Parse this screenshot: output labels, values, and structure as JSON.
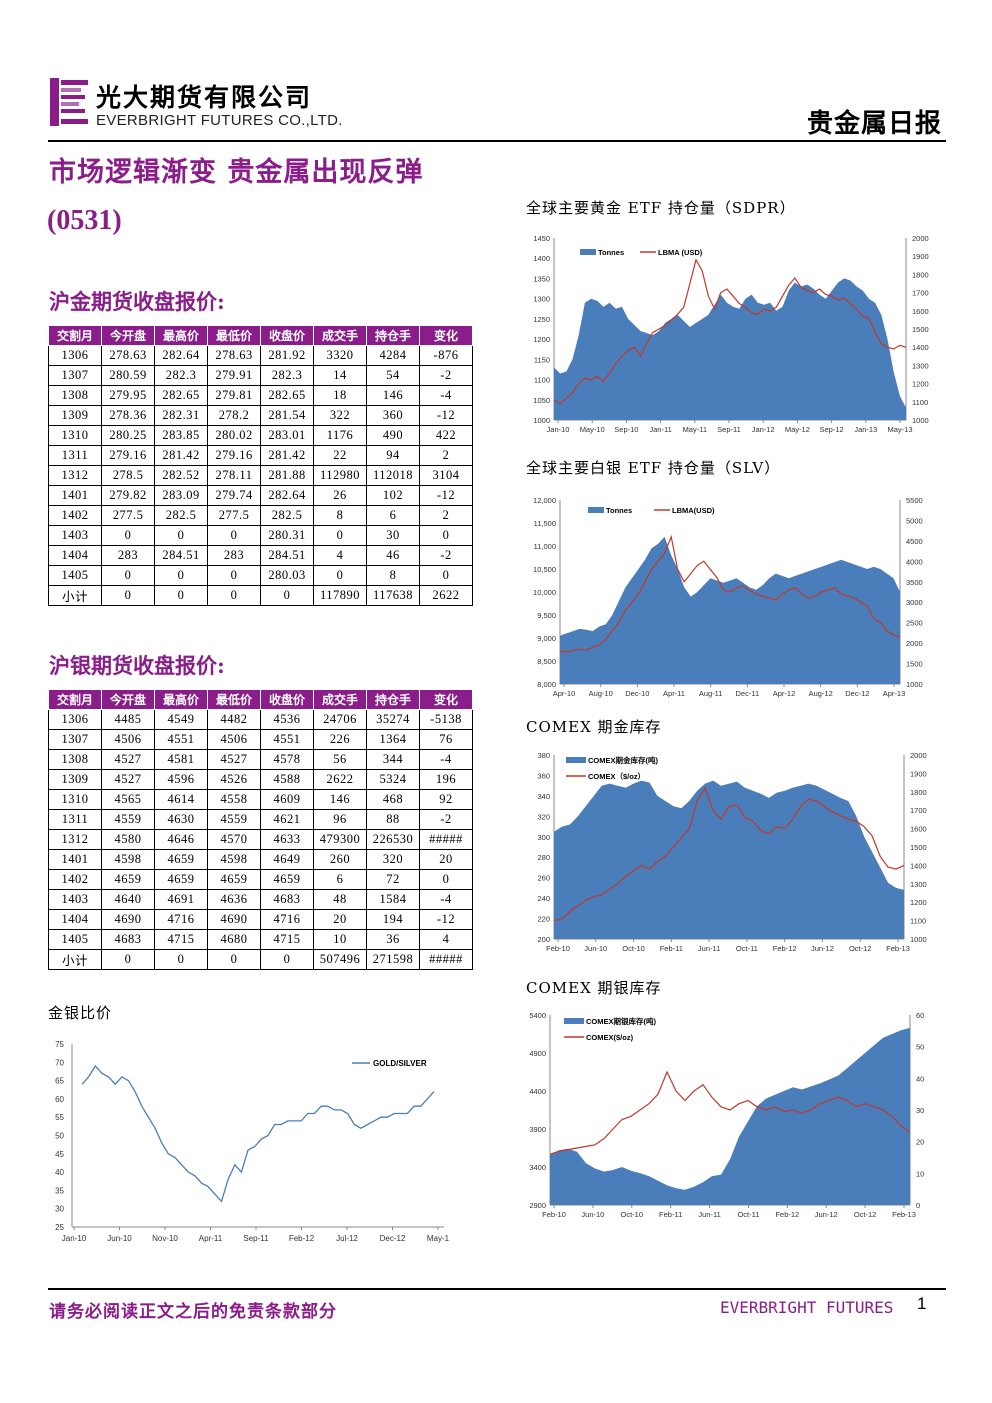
{
  "header": {
    "company_cn": "光大期货有限公司",
    "company_en": "EVERBRIGHT FUTURES CO.,LTD.",
    "report_type": "贵金属日报"
  },
  "main_title": "市场逻辑渐变 贵金属出现反弹",
  "issue_code": "(0531)",
  "gold_section": {
    "title": "沪金期货收盘报价:",
    "columns": [
      "交割月",
      "今开盘",
      "最高价",
      "最低价",
      "收盘价",
      "成交手",
      "持仓手",
      "变化"
    ],
    "rows": [
      [
        "1306",
        "278.63",
        "282.64",
        "278.63",
        "281.92",
        "3320",
        "4284",
        "-876"
      ],
      [
        "1307",
        "280.59",
        "282.3",
        "279.91",
        "282.3",
        "14",
        "54",
        "-2"
      ],
      [
        "1308",
        "279.95",
        "282.65",
        "279.81",
        "282.65",
        "18",
        "146",
        "-4"
      ],
      [
        "1309",
        "278.36",
        "282.31",
        "278.2",
        "281.54",
        "322",
        "360",
        "-12"
      ],
      [
        "1310",
        "280.25",
        "283.85",
        "280.02",
        "283.01",
        "1176",
        "490",
        "422"
      ],
      [
        "1311",
        "279.16",
        "281.42",
        "279.16",
        "281.42",
        "22",
        "94",
        "2"
      ],
      [
        "1312",
        "278.5",
        "282.52",
        "278.11",
        "281.88",
        "112980",
        "112018",
        "3104"
      ],
      [
        "1401",
        "279.82",
        "283.09",
        "279.74",
        "282.64",
        "26",
        "102",
        "-12"
      ],
      [
        "1402",
        "277.5",
        "282.5",
        "277.5",
        "282.5",
        "8",
        "6",
        "2"
      ],
      [
        "1403",
        "0",
        "0",
        "0",
        "280.31",
        "0",
        "30",
        "0"
      ],
      [
        "1404",
        "283",
        "284.51",
        "283",
        "284.51",
        "4",
        "46",
        "-2"
      ],
      [
        "1405",
        "0",
        "0",
        "0",
        "280.03",
        "0",
        "8",
        "0"
      ],
      [
        "小计",
        "0",
        "0",
        "0",
        "0",
        "117890",
        "117638",
        "2622"
      ]
    ]
  },
  "silver_section": {
    "title": "沪银期货收盘报价:",
    "columns": [
      "交割月",
      "今开盘",
      "最高价",
      "最低价",
      "收盘价",
      "成交手",
      "持仓手",
      "变化"
    ],
    "rows": [
      [
        "1306",
        "4485",
        "4549",
        "4482",
        "4536",
        "24706",
        "35274",
        "-5138"
      ],
      [
        "1307",
        "4506",
        "4551",
        "4506",
        "4551",
        "226",
        "1364",
        "76"
      ],
      [
        "1308",
        "4527",
        "4581",
        "4527",
        "4578",
        "56",
        "344",
        "-4"
      ],
      [
        "1309",
        "4527",
        "4596",
        "4526",
        "4588",
        "2622",
        "5324",
        "196"
      ],
      [
        "1310",
        "4565",
        "4614",
        "4558",
        "4609",
        "146",
        "468",
        "92"
      ],
      [
        "1311",
        "4559",
        "4630",
        "4559",
        "4621",
        "96",
        "88",
        "-2"
      ],
      [
        "1312",
        "4580",
        "4646",
        "4570",
        "4633",
        "479300",
        "226530",
        "#####"
      ],
      [
        "1401",
        "4598",
        "4659",
        "4598",
        "4649",
        "260",
        "320",
        "20"
      ],
      [
        "1402",
        "4659",
        "4659",
        "4659",
        "4659",
        "6",
        "72",
        "0"
      ],
      [
        "1403",
        "4640",
        "4691",
        "4636",
        "4683",
        "48",
        "1584",
        "-4"
      ],
      [
        "1404",
        "4690",
        "4716",
        "4690",
        "4716",
        "20",
        "194",
        "-12"
      ],
      [
        "1405",
        "4683",
        "4715",
        "4680",
        "4715",
        "10",
        "36",
        "4"
      ],
      [
        "小计",
        "0",
        "0",
        "0",
        "0",
        "507496",
        "271598",
        "#####"
      ]
    ]
  },
  "footer": {
    "disclaimer": "请务必阅读正文之后的免责条款部分",
    "brand": "EVERBRIGHT FUTURES",
    "page": "1"
  },
  "colors": {
    "accent": "#8b1d8b",
    "area_blue": "#4a7ebb",
    "line_red": "#c0392b",
    "line_blue": "#4a7ebb"
  },
  "chart_data": [
    {
      "id": "gold-etf",
      "type": "area",
      "title": "全球主要黄金 ETF 持仓量（SDPR）",
      "x_ticks": [
        "Jan-10",
        "May-10",
        "Sep-10",
        "Jan-11",
        "May-11",
        "Sep-11",
        "Jan-12",
        "May-12",
        "Sep-12",
        "Jan-13",
        "May-13"
      ],
      "y_left_ticks": [
        "1450",
        "1400",
        "1350",
        "1300",
        "1250",
        "1200",
        "1150",
        "1100",
        "1050",
        "1000"
      ],
      "y_right_ticks": [
        "2000",
        "1900",
        "1800",
        "1700",
        "1600",
        "1500",
        "1400",
        "1300",
        "1200",
        "1100",
        "1000"
      ],
      "ylim_left": [
        1000,
        1450
      ],
      "ylim_right": [
        1000,
        2000
      ],
      "series": [
        {
          "name": "Tonnes",
          "type": "area",
          "axis": "left",
          "values": [
            1130,
            1115,
            1120,
            1150,
            1210,
            1290,
            1300,
            1295,
            1280,
            1290,
            1275,
            1280,
            1250,
            1235,
            1220,
            1215,
            1210,
            1220,
            1240,
            1250,
            1260,
            1245,
            1230,
            1240,
            1250,
            1260,
            1285,
            1310,
            1290,
            1280,
            1275,
            1300,
            1310,
            1290,
            1285,
            1290,
            1270,
            1280,
            1320,
            1340,
            1330,
            1335,
            1325,
            1310,
            1300,
            1320,
            1340,
            1350,
            1345,
            1330,
            1320,
            1300,
            1290,
            1260,
            1200,
            1120,
            1060,
            1030
          ]
        },
        {
          "name": "LBMA (USD)",
          "type": "line",
          "axis": "right",
          "values": [
            1110,
            1090,
            1120,
            1150,
            1200,
            1230,
            1220,
            1240,
            1210,
            1260,
            1310,
            1350,
            1380,
            1400,
            1350,
            1420,
            1480,
            1500,
            1520,
            1550,
            1580,
            1620,
            1750,
            1880,
            1820,
            1680,
            1610,
            1700,
            1720,
            1680,
            1640,
            1620,
            1590,
            1580,
            1610,
            1600,
            1620,
            1680,
            1740,
            1780,
            1730,
            1710,
            1700,
            1720,
            1690,
            1680,
            1660,
            1670,
            1640,
            1610,
            1570,
            1560,
            1480,
            1420,
            1400,
            1390,
            1410,
            1400
          ]
        }
      ]
    },
    {
      "id": "silver-etf",
      "type": "area",
      "title": "全球主要白银 ETF 持仓量（SLV）",
      "x_ticks": [
        "Apr-10",
        "Aug-10",
        "Dec-10",
        "Apr-11",
        "Aug-11",
        "Dec-11",
        "Apr-12",
        "Aug-12",
        "Dec-12",
        "Apr-13"
      ],
      "y_left_ticks": [
        "12,000",
        "11,500",
        "11,000",
        "10,500",
        "10,000",
        "9,500",
        "9,000",
        "8,500",
        "8,000"
      ],
      "y_right_ticks": [
        "5500",
        "5000",
        "4500",
        "4000",
        "3500",
        "3000",
        "2500",
        "2000",
        "1500",
        "1000"
      ],
      "ylim_left": [
        8000,
        12000
      ],
      "ylim_right": [
        1000,
        5500
      ],
      "series": [
        {
          "name": "Tonnes",
          "type": "area",
          "axis": "left",
          "values": [
            9050,
            9100,
            9150,
            9200,
            9180,
            9150,
            9250,
            9300,
            9500,
            9800,
            10100,
            10300,
            10500,
            10700,
            10950,
            11050,
            11200,
            10800,
            10500,
            10100,
            9900,
            10000,
            10150,
            10300,
            10250,
            10200,
            10250,
            10300,
            10200,
            10100,
            10050,
            10150,
            10300,
            10400,
            10350,
            10300,
            10350,
            10400,
            10450,
            10500,
            10550,
            10600,
            10650,
            10700,
            10650,
            10600,
            10550,
            10500,
            10550,
            10500,
            10400,
            10300,
            10000
          ]
        },
        {
          "name": "LBMA(USD)",
          "type": "line",
          "axis": "right",
          "values": [
            1800,
            1780,
            1820,
            1850,
            1830,
            1900,
            1950,
            2100,
            2300,
            2500,
            2800,
            3000,
            3200,
            3500,
            3800,
            4000,
            4200,
            4600,
            3800,
            3500,
            3700,
            3900,
            4000,
            3800,
            3600,
            3300,
            3250,
            3350,
            3400,
            3300,
            3200,
            3150,
            3100,
            3050,
            3200,
            3300,
            3350,
            3200,
            3100,
            3150,
            3250,
            3300,
            3350,
            3200,
            3150,
            3100,
            3000,
            2900,
            2600,
            2500,
            2300,
            2200,
            2150
          ]
        }
      ]
    },
    {
      "id": "comex-gold",
      "type": "area",
      "title": "COMEX 期金库存",
      "x_ticks": [
        "Feb-10",
        "Jun-10",
        "Oct-10",
        "Feb-11",
        "Jun-11",
        "Oct-11",
        "Feb-12",
        "Jun-12",
        "Oct-12",
        "Feb-13"
      ],
      "y_left_ticks": [
        "380",
        "360",
        "340",
        "320",
        "300",
        "280",
        "260",
        "240",
        "220",
        "200"
      ],
      "y_right_ticks": [
        "2000",
        "1900",
        "1800",
        "1700",
        "1600",
        "1500",
        "1400",
        "1300",
        "1200",
        "1100",
        "1000"
      ],
      "ylim_left": [
        200,
        380
      ],
      "ylim_right": [
        1000,
        2000
      ],
      "series": [
        {
          "name": "COMEX期金库存(吨)",
          "type": "area",
          "axis": "left",
          "values": [
            305,
            310,
            312,
            320,
            330,
            340,
            350,
            352,
            350,
            348,
            352,
            355,
            353,
            340,
            335,
            330,
            328,
            335,
            345,
            352,
            355,
            350,
            352,
            354,
            348,
            345,
            342,
            338,
            343,
            345,
            348,
            350,
            352,
            350,
            346,
            342,
            338,
            335,
            320,
            300,
            285,
            270,
            255,
            250,
            248
          ]
        },
        {
          "name": "COMEX（$/oz）",
          "type": "line",
          "axis": "right",
          "values": [
            1100,
            1110,
            1150,
            1180,
            1210,
            1230,
            1240,
            1270,
            1300,
            1340,
            1370,
            1400,
            1380,
            1420,
            1450,
            1500,
            1550,
            1600,
            1750,
            1820,
            1700,
            1650,
            1720,
            1730,
            1660,
            1640,
            1590,
            1570,
            1610,
            1600,
            1650,
            1720,
            1760,
            1750,
            1720,
            1690,
            1670,
            1650,
            1640,
            1610,
            1560,
            1450,
            1390,
            1380,
            1400
          ]
        }
      ]
    },
    {
      "id": "comex-silver",
      "type": "area",
      "title": "COMEX 期银库存",
      "x_ticks": [
        "Feb-10",
        "Jun-10",
        "Oct-10",
        "Feb-11",
        "Jun-11",
        "Oct-11",
        "Feb-12",
        "Jun-12",
        "Oct-12",
        "Feb-13"
      ],
      "y_left_ticks": [
        "5400",
        "4900",
        "4400",
        "3900",
        "3400",
        "2900"
      ],
      "y_right_ticks": [
        "60",
        "50",
        "40",
        "30",
        "20",
        "10",
        "0"
      ],
      "ylim_left": [
        2900,
        5400
      ],
      "ylim_right": [
        0,
        60
      ],
      "series": [
        {
          "name": "COMEX期银库存(吨)",
          "type": "area",
          "axis": "left",
          "values": [
            3560,
            3620,
            3640,
            3600,
            3450,
            3380,
            3340,
            3360,
            3400,
            3350,
            3320,
            3280,
            3220,
            3160,
            3120,
            3100,
            3140,
            3200,
            3280,
            3300,
            3500,
            3800,
            4000,
            4200,
            4300,
            4350,
            4400,
            4450,
            4420,
            4460,
            4500,
            4550,
            4600,
            4700,
            4800,
            4900,
            5000,
            5100,
            5150,
            5200,
            5230
          ]
        },
        {
          "name": "COMEX($/oz)",
          "type": "line",
          "axis": "right",
          "values": [
            16,
            17,
            17.5,
            18,
            18.5,
            19,
            21,
            24,
            27,
            28,
            30,
            32,
            35,
            42,
            36,
            33,
            36,
            38,
            34,
            31,
            30,
            32,
            33,
            31,
            30,
            31,
            29.5,
            30,
            29,
            30,
            32,
            33,
            34,
            33,
            31,
            32,
            31,
            30,
            28,
            25,
            23
          ]
        }
      ]
    },
    {
      "id": "gold-silver-ratio",
      "type": "line",
      "title": "金银比价",
      "x_ticks": [
        "Jan-10",
        "Jun-10",
        "Nov-10",
        "Apr-11",
        "Sep-11",
        "Feb-12",
        "Jul-12",
        "Dec-12",
        "May-1"
      ],
      "y_ticks": [
        "75",
        "70",
        "65",
        "60",
        "55",
        "50",
        "45",
        "40",
        "35",
        "30",
        "25"
      ],
      "ylim": [
        25,
        75
      ],
      "series": [
        {
          "name": "GOLD/SILVER",
          "values": [
            64,
            66,
            69,
            67,
            66,
            64,
            66,
            65,
            62,
            58,
            55,
            52,
            48,
            45,
            44,
            42,
            40,
            39,
            37,
            36,
            34,
            32,
            38,
            42,
            40,
            46,
            47,
            49,
            50,
            53,
            53,
            54,
            54,
            54,
            56,
            56,
            58,
            58,
            57,
            57,
            56,
            53,
            52,
            53,
            54,
            55,
            55,
            56,
            56,
            56,
            58,
            58,
            60,
            62
          ]
        }
      ]
    }
  ]
}
